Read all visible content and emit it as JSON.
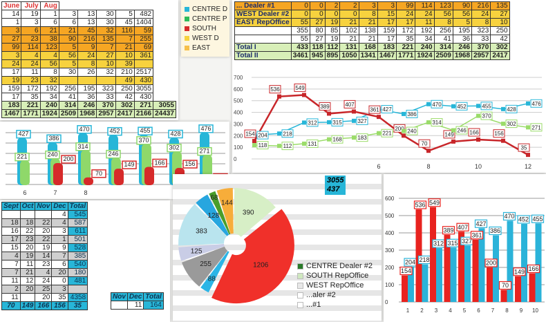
{
  "top_left_table": {
    "header": [
      "June",
      "July",
      "Aug"
    ],
    "rows": [
      {
        "style": "plain",
        "cells": [
          "14",
          "19",
          "1",
          "3",
          "13",
          "30",
          "5",
          "482"
        ]
      },
      {
        "style": "plain",
        "cells": [
          "1",
          "3",
          "6",
          "6",
          "13",
          "30",
          "45",
          "1404"
        ]
      },
      {
        "style": "orange",
        "cells": [
          "3",
          "6",
          "21",
          "21",
          "45",
          "32",
          "116",
          "59"
        ]
      },
      {
        "style": "orange",
        "cells": [
          "27",
          "23",
          "38",
          "90",
          "216",
          "135",
          "7",
          "255"
        ]
      },
      {
        "style": "orange",
        "cells": [
          "99",
          "114",
          "123",
          "5",
          "9",
          "7",
          "21",
          "69"
        ]
      },
      {
        "style": "yellow",
        "cells": [
          "3",
          "4",
          "4",
          "56",
          "24",
          "27",
          "10",
          "361"
        ]
      },
      {
        "style": "yellow",
        "cells": [
          "24",
          "24",
          "56",
          "5",
          "8",
          "10",
          "39",
          ""
        ]
      },
      {
        "style": "plain",
        "cells": [
          "17",
          "11",
          "8",
          "30",
          "26",
          "32",
          "210",
          "2517"
        ]
      },
      {
        "style": "yellow",
        "cells": [
          "19",
          "23",
          "32",
          "",
          "",
          "",
          "49",
          "430"
        ]
      },
      {
        "style": "plain",
        "cells": [
          "159",
          "172",
          "192",
          "256",
          "195",
          "323",
          "250",
          "3055"
        ]
      },
      {
        "style": "plain",
        "cells": [
          "17",
          "35",
          "34",
          "41",
          "36",
          "33",
          "42",
          "430"
        ]
      },
      {
        "style": "green",
        "cells": [
          "183",
          "221",
          "240",
          "314",
          "246",
          "370",
          "302",
          "271",
          "3055"
        ]
      },
      {
        "style": "green",
        "cells": [
          "1467",
          "1771",
          "1924",
          "2509",
          "1968",
          "2957",
          "2417",
          "2166",
          "24437"
        ]
      }
    ]
  },
  "top_legend": {
    "items": [
      {
        "label": "CENTRE D",
        "color": "#27b6d8"
      },
      {
        "label": "CENTRE P",
        "color": "#2dbb5a"
      },
      {
        "label": "SOUTH",
        "color": "#d62a2a"
      },
      {
        "label": "WEST D",
        "color": "#f7d23e"
      },
      {
        "label": "EAST",
        "color": "#f6c04a"
      }
    ]
  },
  "top_right_table": {
    "rows": [
      {
        "style": "orange",
        "label": "... Dealer #1",
        "cells": [
          "0",
          "0",
          "2",
          "2",
          "3",
          "3",
          "99",
          "114",
          "123",
          "90",
          "216",
          "135"
        ]
      },
      {
        "style": "yellow",
        "label": "WEST Dealer #2",
        "cells": [
          "0",
          "0",
          "0",
          "0",
          "8",
          "15",
          "24",
          "24",
          "56",
          "56",
          "24",
          "27"
        ]
      },
      {
        "style": "yellow",
        "label": "EAST RepOffice",
        "cells": [
          "55",
          "27",
          "19",
          "21",
          "21",
          "17",
          "17",
          "11",
          "8",
          "5",
          "8",
          "10"
        ]
      },
      {
        "style": "plain",
        "label": "",
        "cells": [
          "355",
          "80",
          "85",
          "102",
          "138",
          "159",
          "172",
          "192",
          "256",
          "195",
          "323",
          "250"
        ]
      },
      {
        "style": "plain",
        "label": "",
        "cells": [
          "55",
          "27",
          "19",
          "21",
          "21",
          "17",
          "35",
          "34",
          "41",
          "36",
          "33",
          "42"
        ]
      },
      {
        "style": "green",
        "label": "Total I",
        "cells": [
          "433",
          "118",
          "112",
          "131",
          "168",
          "183",
          "221",
          "240",
          "314",
          "246",
          "370",
          "302"
        ]
      },
      {
        "style": "green",
        "label": "Total II",
        "cells": [
          "3461",
          "945",
          "895",
          "1050",
          "1341",
          "1467",
          "1771",
          "1924",
          "2509",
          "1968",
          "2957",
          "2417"
        ]
      }
    ]
  },
  "chart_data": [
    {
      "type": "line",
      "x": [
        1,
        2,
        3,
        4,
        5,
        6,
        7,
        8,
        9,
        10,
        11,
        12
      ],
      "x_ticks": [
        "6",
        "8",
        "10",
        "12"
      ],
      "y_ticks": [
        "0",
        "100",
        "200",
        "300",
        "400",
        "500",
        "600",
        "700"
      ],
      "ylim": [
        0,
        700
      ],
      "grid": true,
      "series": [
        {
          "color": "#27b6d8",
          "values": [
            204,
            218,
            312,
            315,
            327,
            427,
            386,
            470,
            452,
            455,
            428,
            476
          ]
        },
        {
          "color": "#c8262a",
          "values": [
            154,
            536,
            549,
            389,
            407,
            361,
            200,
            70,
            149,
            166,
            156,
            35
          ]
        },
        {
          "color": "#9bdc6a",
          "values": [
            118,
            112,
            131,
            168,
            183,
            221,
            240,
            314,
            246,
            370,
            302,
            271
          ]
        }
      ]
    },
    {
      "type": "bar",
      "categories": [
        "6",
        "7",
        "8",
        "9",
        "10",
        "11",
        "12"
      ],
      "x_ticks": [
        "6",
        "7",
        "8"
      ],
      "series": [
        {
          "color": "#27b6d8",
          "values": [
            427,
            386,
            470,
            452,
            455,
            428,
            476
          ]
        },
        {
          "color": "#8fd86a",
          "values": [
            221,
            240,
            314,
            246,
            370,
            302,
            271
          ]
        },
        {
          "color": "#d62a2a",
          "values": [
            null,
            200,
            70,
            149,
            166,
            156,
            35
          ]
        }
      ]
    },
    {
      "type": "pie",
      "slices": [
        {
          "value": 390,
          "color": "#d7efc6"
        },
        {
          "value": 1206,
          "color": "#f0302a"
        },
        {
          "value": 88,
          "color": "#2cb5e6"
        },
        {
          "value": 255,
          "color": "#9a9a9a"
        },
        {
          "value": 125,
          "color": "#c9cde6"
        },
        {
          "value": 383,
          "color": "#b9e4ee"
        },
        {
          "value": 128,
          "color": "#27a6df"
        },
        {
          "value": 68,
          "color": "#4a9e2a"
        },
        {
          "value": 144,
          "color": "#f7ad3a"
        }
      ],
      "legend": [
        "CENTRE Dealer #2",
        "SOUTH RepOffice",
        "WEST RepOffice",
        "...aler #2",
        "...#1"
      ],
      "legend_colors": [
        "#2a7a2a",
        "#cfe8bf",
        "#e8e8e8",
        "#ffffff",
        "#ffffff"
      ]
    },
    {
      "type": "bar",
      "categories": [
        "1",
        "2",
        "3",
        "4",
        "5",
        "6",
        "7",
        "8",
        "9",
        "10"
      ],
      "y_ticks": [
        "0",
        "100",
        "200",
        "300",
        "400",
        "500",
        "600"
      ],
      "ylim": [
        0,
        600
      ],
      "series": [
        {
          "color": "#e8231f",
          "values": [
            154,
            536,
            549,
            389,
            407,
            361,
            200,
            70,
            149,
            166
          ]
        },
        {
          "color": "#2bb3d9",
          "values": [
            204,
            218,
            312,
            315,
            327,
            427,
            386,
            470,
            452,
            455
          ]
        }
      ]
    }
  ],
  "bottom_left_table": {
    "header": [
      "Sept",
      "Oct",
      "Nov",
      "Dec",
      "Total"
    ],
    "rows": [
      {
        "cells": [
          "",
          "",
          "",
          "4",
          "545"
        ]
      },
      {
        "cells": [
          "18",
          "18",
          "22",
          "4",
          "587"
        ]
      },
      {
        "cells": [
          "16",
          "22",
          "20",
          "3",
          "611"
        ]
      },
      {
        "cells": [
          "17",
          "23",
          "22",
          "1",
          "501"
        ]
      },
      {
        "cells": [
          "15",
          "20",
          "19",
          "9",
          "528"
        ]
      },
      {
        "cells": [
          "4",
          "19",
          "14",
          "7",
          "385"
        ]
      },
      {
        "cells": [
          "7",
          "11",
          "23",
          "6",
          "540"
        ]
      },
      {
        "cells": [
          "7",
          "21",
          "4",
          "20",
          "180"
        ]
      },
      {
        "cells": [
          "11",
          "12",
          "24",
          "0",
          "481"
        ]
      },
      {
        "cells": [
          "2",
          "20",
          "25",
          "3",
          ""
        ]
      },
      {
        "cells": [
          "11",
          "",
          "20",
          "35",
          "4358"
        ]
      }
    ],
    "summary": [
      "70",
      "149",
      "166",
      "156",
      "35"
    ],
    "next_header": [
      "Nov",
      "Dec",
      "Total"
    ],
    "next_values": [
      "",
      "11",
      "164"
    ]
  },
  "side_totals": [
    "3055",
    "437"
  ]
}
